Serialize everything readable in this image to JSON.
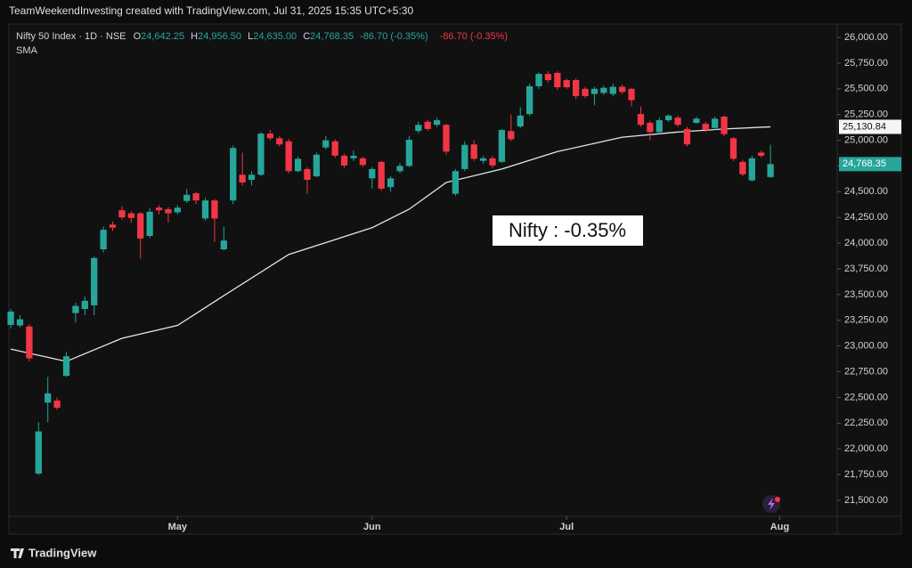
{
  "chart_data": {
    "type": "candlestick",
    "watermark": "TeamWeekendInvesting created with TradingView.com, Jul 31, 2025 15:35 UTC+5:30",
    "header": {
      "symbol": "Nifty 50 Index · 1D · NSE",
      "o": "O",
      "o_value": "24,642.25",
      "h": "H",
      "h_value": "24,956.50",
      "l": "L",
      "l_value": "24,635.00",
      "c": "C",
      "c_value": "24,768.35",
      "change": "-86.70 (-0.35%)",
      "change_red": "-86.70 (-0.35%)"
    },
    "annotation": "Nifty : -0.35%",
    "brand": "TradingView",
    "up_color": "#26a69a",
    "down_color": "#f23645",
    "candles": {
      "open": [
        23205,
        23200,
        23190,
        21760,
        22450,
        22470,
        22710,
        23320,
        23360,
        23395,
        23940,
        24180,
        24320,
        24290,
        24290,
        24070,
        24345,
        24330,
        24300,
        24410,
        24485,
        24240,
        24415,
        23940,
        24415,
        24665,
        24615,
        24665,
        25065,
        25020,
        24990,
        24700,
        24720,
        24650,
        24930,
        24990,
        24850,
        24825,
        24825,
        24630,
        24790,
        24545,
        24700,
        24750,
        25090,
        25180,
        25150,
        25150,
        24480,
        24720,
        24960,
        24800,
        24825,
        24790,
        25090,
        25135,
        25255,
        25525,
        25645,
        25655,
        25585,
        25585,
        25500,
        25450,
        25460,
        25450,
        25520,
        25500,
        25255,
        25170,
        25080,
        25195,
        25220,
        25110,
        25170,
        25160,
        25120,
        25230,
        25020,
        24790,
        24610,
        24880,
        24642.25
      ],
      "high": [
        23360,
        23300,
        23210,
        22260,
        22700,
        22500,
        22940,
        23420,
        23480,
        23870,
        24160,
        24210,
        24360,
        24310,
        24300,
        24340,
        24370,
        24350,
        24370,
        24530,
        24500,
        24440,
        24430,
        24160,
        24950,
        24880,
        24700,
        25080,
        25100,
        25040,
        25010,
        24840,
        24740,
        24880,
        25040,
        25010,
        24870,
        24900,
        24840,
        24740,
        24800,
        24650,
        24780,
        25040,
        25180,
        25200,
        25220,
        25160,
        24720,
        24990,
        25000,
        24850,
        24850,
        25110,
        25250,
        25320,
        25550,
        25660,
        25670,
        25670,
        25600,
        25600,
        25520,
        25520,
        25530,
        25550,
        25540,
        25510,
        25330,
        25190,
        25220,
        25250,
        25240,
        25130,
        25230,
        25180,
        25230,
        25240,
        25030,
        24810,
        24850,
        24900,
        24956.5
      ],
      "low": [
        23170,
        23180,
        22850,
        21745,
        22260,
        22380,
        22700,
        23230,
        23300,
        23300,
        23910,
        24120,
        24230,
        24200,
        23850,
        24050,
        24280,
        24200,
        24280,
        24390,
        24380,
        24220,
        24010,
        23930,
        24380,
        24560,
        24560,
        24650,
        25000,
        24940,
        24680,
        24690,
        24480,
        24640,
        24910,
        24830,
        24730,
        24800,
        24740,
        24530,
        24510,
        24500,
        24680,
        24740,
        25070,
        25090,
        25130,
        24860,
        24460,
        24700,
        24800,
        24770,
        24730,
        24780,
        24990,
        25120,
        25240,
        25500,
        25560,
        25490,
        25500,
        25400,
        25410,
        25340,
        25440,
        25430,
        25450,
        25330,
        25130,
        25000,
        25060,
        25180,
        25130,
        24940,
        25160,
        25080,
        25100,
        25040,
        24800,
        24650,
        24600,
        24830,
        24635
      ],
      "close": [
        23335,
        23260,
        22880,
        22170,
        22540,
        22400,
        22900,
        23390,
        23440,
        23855,
        24130,
        24150,
        24250,
        24245,
        24045,
        24305,
        24320,
        24290,
        24345,
        24470,
        24415,
        24415,
        24240,
        24025,
        24925,
        24590,
        24665,
        25065,
        25020,
        24960,
        24700,
        24820,
        24615,
        24860,
        25000,
        24850,
        24755,
        24850,
        24760,
        24720,
        24530,
        24630,
        24750,
        25005,
        25150,
        25110,
        25195,
        24890,
        24700,
        24955,
        24820,
        24825,
        24755,
        25100,
        25010,
        25240,
        25525,
        25645,
        25585,
        25515,
        25515,
        25430,
        25430,
        25500,
        25510,
        25520,
        25470,
        25390,
        25150,
        25080,
        25195,
        25240,
        25150,
        24960,
        25210,
        25100,
        25210,
        25060,
        24820,
        24670,
        24825,
        24850,
        24768.35
      ],
      "last_label": "24,768.35"
    },
    "sma": {
      "name": "SMA",
      "color": "#e6e6e6",
      "x": [
        0,
        6,
        12,
        18,
        23,
        30,
        39,
        43,
        47,
        53,
        59,
        66,
        72,
        77,
        82
      ],
      "values": [
        22970,
        22850,
        23075,
        23200,
        23490,
        23890,
        24150,
        24330,
        24590,
        24720,
        24890,
        25030,
        25080,
        25110,
        25130.84
      ],
      "last_label": "25,130.84"
    },
    "xlim": [
      -0.2,
      89.2
    ],
    "xticks": [
      {
        "value": 18,
        "label": "May"
      },
      {
        "value": 39,
        "label": "Jun"
      },
      {
        "value": 60,
        "label": "Jul"
      },
      {
        "value": 83,
        "label": "Aug"
      }
    ],
    "ylim": [
      21344,
      26130
    ],
    "yticks": [
      {
        "value": 21500,
        "label": "21,500.00"
      },
      {
        "value": 21750,
        "label": "21,750.00"
      },
      {
        "value": 22000,
        "label": "22,000.00"
      },
      {
        "value": 22250,
        "label": "22,250.00"
      },
      {
        "value": 22500,
        "label": "22,500.00"
      },
      {
        "value": 22750,
        "label": "22,750.00"
      },
      {
        "value": 23000,
        "label": "23,000.00"
      },
      {
        "value": 23250,
        "label": "23,250.00"
      },
      {
        "value": 23500,
        "label": "23,500.00"
      },
      {
        "value": 23750,
        "label": "23,750.00"
      },
      {
        "value": 24000,
        "label": "24,000.00"
      },
      {
        "value": 24250,
        "label": "24,250.00"
      },
      {
        "value": 24500,
        "label": "24,500.00"
      },
      {
        "value": 24750,
        "label": "24,750.00"
      },
      {
        "value": 25000,
        "label": "25,000.00"
      },
      {
        "value": 25250,
        "label": "25,250.00"
      },
      {
        "value": 25500,
        "label": "25,500.00"
      },
      {
        "value": 25750,
        "label": "25,750.00"
      },
      {
        "value": 26000,
        "label": "26,000.00"
      }
    ],
    "grid": false
  }
}
